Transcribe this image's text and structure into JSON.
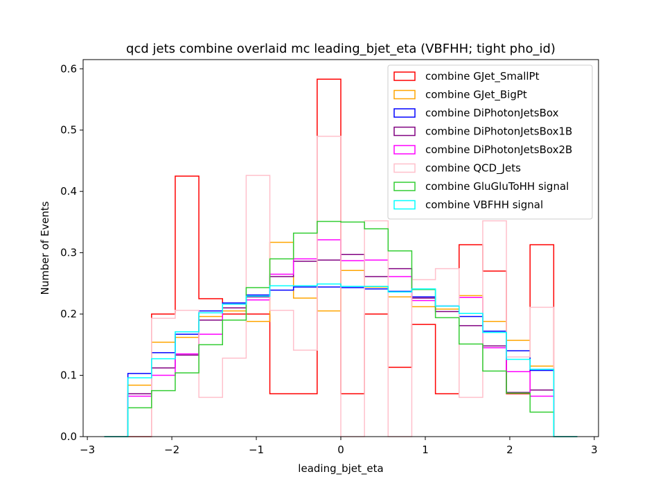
{
  "chart_data": {
    "type": "step-histogram",
    "title": "qcd jets combine overlaid mc leading_bjet_eta (VBFHH; tight pho_id)",
    "xlabel": "leading_bjet_eta",
    "ylabel": "Number of Events",
    "xlim": [
      -3.05,
      3.05
    ],
    "ylim": [
      0,
      0.615
    ],
    "xticks": [
      -3,
      -2,
      -1,
      0,
      1,
      2,
      3
    ],
    "xtick_labels": [
      "−3",
      "−2",
      "−1",
      "0",
      "1",
      "2",
      "3"
    ],
    "yticks": [
      0.0,
      0.1,
      0.2,
      0.3,
      0.4,
      0.5,
      0.6
    ],
    "ytick_labels": [
      "0.0",
      "0.1",
      "0.2",
      "0.3",
      "0.4",
      "0.5",
      "0.6"
    ],
    "legend_position": "top-right",
    "grid": false,
    "bin_edges": [
      -2.8,
      -2.52,
      -2.24,
      -1.96,
      -1.68,
      -1.4,
      -1.12,
      -0.84,
      -0.56,
      -0.28,
      0.0,
      0.28,
      0.56,
      0.84,
      1.12,
      1.4,
      1.68,
      1.96,
      2.24,
      2.52,
      2.8
    ],
    "series": [
      {
        "name": "combine GJet_SmallPt",
        "color": "#ff0000",
        "values": [
          0,
          0,
          0.2,
          0.425,
          0.225,
          0.2,
          0.2,
          0.07,
          0.07,
          0.583,
          0.07,
          0.2,
          0.113,
          0.183,
          0.07,
          0.313,
          0.27,
          0.07,
          0.313,
          0,
          0
        ]
      },
      {
        "name": "combine GJet_BigPt",
        "color": "#ffa500",
        "values": [
          0,
          0.084,
          0.154,
          0.162,
          0.196,
          0.205,
          0.188,
          0.317,
          0.226,
          0.205,
          0.271,
          0.244,
          0.228,
          0.212,
          0.208,
          0.23,
          0.188,
          0.157,
          0.115,
          0,
          0
        ]
      },
      {
        "name": "combine DiPhotonJetsBox",
        "color": "#0000ff",
        "values": [
          0,
          0.103,
          0.137,
          0.167,
          0.205,
          0.218,
          0.231,
          0.239,
          0.244,
          0.244,
          0.243,
          0.241,
          0.237,
          0.228,
          0.213,
          0.196,
          0.172,
          0.14,
          0.108,
          0,
          0
        ]
      },
      {
        "name": "combine DiPhotonJetsBox1B",
        "color": "#800080",
        "values": [
          0,
          0.07,
          0.112,
          0.133,
          0.19,
          0.21,
          0.228,
          0.261,
          0.286,
          0.288,
          0.297,
          0.261,
          0.274,
          0.226,
          0.204,
          0.181,
          0.148,
          0.072,
          0.076,
          0,
          0
        ]
      },
      {
        "name": "combine DiPhotonJetsBox2B",
        "color": "#ff00ff",
        "values": [
          0,
          0.066,
          0.1,
          0.135,
          0.167,
          0.216,
          0.223,
          0.265,
          0.29,
          0.321,
          0.287,
          0.288,
          0.261,
          0.222,
          0.213,
          0.227,
          0.145,
          0.106,
          0.066,
          0,
          0
        ]
      },
      {
        "name": "combine QCD_Jets",
        "color": "#ffc0cb",
        "values": [
          0,
          0,
          0.193,
          0.206,
          0.064,
          0.128,
          0.426,
          0.206,
          0.141,
          0.49,
          0,
          0.352,
          0,
          0.256,
          0.274,
          0.064,
          0.352,
          0.13,
          0.211,
          0,
          0
        ]
      },
      {
        "name": "combine GluGluToHH signal",
        "color": "#32cd32",
        "values": [
          0,
          0.047,
          0.075,
          0.104,
          0.15,
          0.19,
          0.243,
          0.29,
          0.332,
          0.351,
          0.35,
          0.339,
          0.303,
          0.24,
          0.194,
          0.151,
          0.107,
          0.071,
          0.04,
          0,
          0
        ]
      },
      {
        "name": "combine VBFHH signal",
        "color": "#00ffff",
        "values": [
          0,
          0.096,
          0.127,
          0.171,
          0.202,
          0.216,
          0.229,
          0.246,
          0.246,
          0.249,
          0.245,
          0.245,
          0.236,
          0.241,
          0.213,
          0.201,
          0.17,
          0.126,
          0.11,
          0,
          0
        ]
      }
    ]
  }
}
